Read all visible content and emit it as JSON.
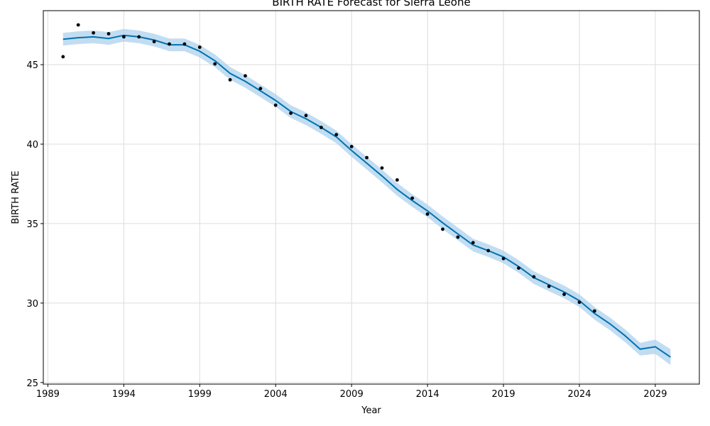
{
  "chart_data": {
    "type": "line",
    "title": "BIRTH RATE Forecast for Sierra Leone",
    "xlabel": "Year",
    "ylabel": "BIRTH RATE",
    "xlim": [
      1988.7,
      2031.9
    ],
    "ylim": [
      24.9,
      48.4
    ],
    "x_ticks": [
      1989,
      1994,
      1999,
      2004,
      2009,
      2014,
      2019,
      2024,
      2029
    ],
    "y_ticks": [
      25,
      30,
      35,
      40,
      45
    ],
    "grid": true,
    "colors": {
      "forecast": "#0072B2",
      "interval": "#ADD2EC",
      "actual": "#000000"
    },
    "series": [
      {
        "name": "actual",
        "x": [
          1990,
          1991,
          1992,
          1993,
          1994,
          1995,
          1996,
          1997,
          1998,
          1999,
          2000,
          2001,
          2002,
          2003,
          2004,
          2005,
          2006,
          2007,
          2008,
          2009,
          2010,
          2011,
          2012,
          2013,
          2014,
          2015,
          2016,
          2017,
          2018,
          2019,
          2020,
          2021,
          2022,
          2023,
          2024,
          2025
        ],
        "values": [
          45.5,
          47.5,
          47.0,
          46.95,
          46.75,
          46.75,
          46.45,
          46.3,
          46.3,
          46.1,
          45.05,
          44.05,
          44.3,
          43.5,
          42.45,
          41.95,
          41.8,
          41.05,
          40.6,
          39.85,
          39.15,
          38.5,
          37.75,
          36.6,
          35.6,
          34.65,
          34.15,
          33.8,
          33.3,
          32.8,
          32.2,
          31.65,
          31.05,
          30.55,
          30.05,
          29.5
        ]
      },
      {
        "name": "forecast",
        "x": [
          1990,
          1991,
          1992,
          1993,
          1994,
          1995,
          1996,
          1997,
          1998,
          1999,
          2000,
          2001,
          2002,
          2003,
          2004,
          2005,
          2006,
          2007,
          2008,
          2009,
          2010,
          2011,
          2012,
          2013,
          2014,
          2015,
          2016,
          2017,
          2018,
          2019,
          2020,
          2021,
          2022,
          2023,
          2024,
          2025,
          2026,
          2027,
          2028,
          2029,
          2030
        ],
        "values": [
          46.6,
          46.7,
          46.75,
          46.65,
          46.85,
          46.75,
          46.55,
          46.25,
          46.25,
          45.85,
          45.25,
          44.45,
          43.95,
          43.35,
          42.75,
          42.05,
          41.6,
          41.05,
          40.45,
          39.6,
          38.8,
          38.0,
          37.15,
          36.45,
          35.8,
          35.05,
          34.35,
          33.65,
          33.3,
          32.9,
          32.3,
          31.6,
          31.15,
          30.7,
          30.15,
          29.35,
          28.7,
          27.95,
          27.1,
          27.25,
          26.6
        ]
      }
    ],
    "interval": {
      "name": "uncertainty",
      "upper": [
        47.0,
        47.1,
        47.15,
        47.05,
        47.25,
        47.15,
        46.95,
        46.65,
        46.65,
        46.25,
        45.65,
        44.85,
        44.35,
        43.75,
        43.15,
        42.45,
        42.0,
        41.45,
        40.85,
        40.0,
        39.2,
        38.4,
        37.55,
        36.85,
        36.2,
        35.45,
        34.75,
        34.05,
        33.7,
        33.3,
        32.7,
        32.0,
        31.55,
        31.1,
        30.55,
        29.75,
        29.1,
        28.35,
        27.5,
        27.7,
        27.1
      ],
      "lower": [
        46.2,
        46.3,
        46.35,
        46.25,
        46.45,
        46.35,
        46.15,
        45.85,
        45.85,
        45.45,
        44.85,
        44.05,
        43.55,
        42.95,
        42.35,
        41.65,
        41.2,
        40.65,
        40.05,
        39.2,
        38.4,
        37.6,
        36.75,
        36.05,
        35.4,
        34.65,
        33.95,
        33.25,
        32.9,
        32.5,
        31.9,
        31.2,
        30.75,
        30.3,
        29.75,
        28.95,
        28.3,
        27.55,
        26.7,
        26.8,
        26.1
      ]
    }
  }
}
